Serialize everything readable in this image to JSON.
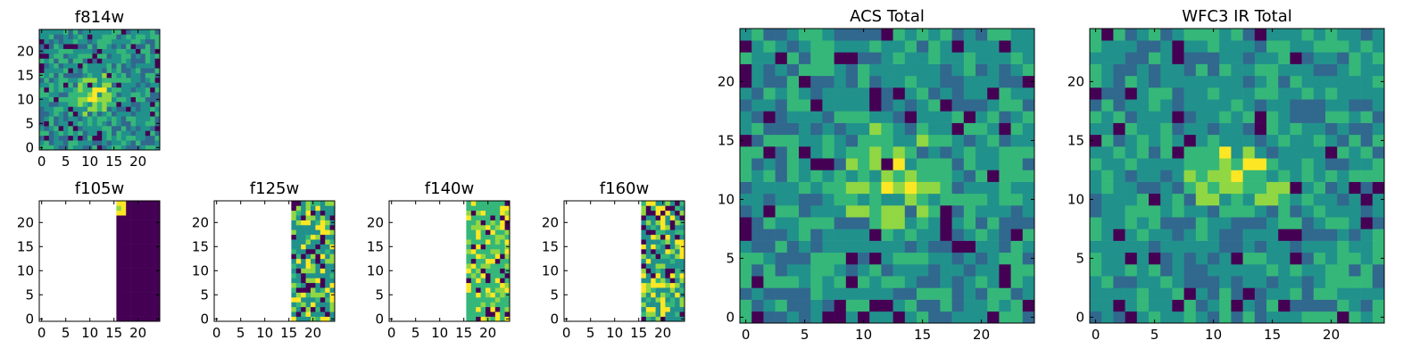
{
  "chart_data": [
    {
      "type": "heatmap",
      "title": "f814w",
      "grid_size": 25,
      "pixels": "full",
      "xlim": [
        0,
        24
      ],
      "ylim": [
        0,
        24
      ],
      "xticks": [
        "0",
        "5",
        "10",
        "15",
        "20"
      ],
      "yticks": [
        "0",
        "5",
        "10",
        "15",
        "20"
      ],
      "xlabel": "",
      "ylabel": "",
      "colormap": "viridis",
      "source_center": [
        11,
        11
      ],
      "brightness": "yellow blob near center"
    },
    {
      "type": "heatmap",
      "title": "f105w",
      "grid_size": 25,
      "data_region_x_start": 16,
      "xlim": [
        0,
        24
      ],
      "ylim": [
        0,
        24
      ],
      "xticks": [
        "0",
        "5",
        "10",
        "15",
        "20"
      ],
      "yticks": [
        "0",
        "5",
        "10",
        "15",
        "20"
      ],
      "xlabel": "",
      "ylabel": "",
      "colormap": "viridis",
      "notes": "mostly dark, bright pixels at top-left of data region"
    },
    {
      "type": "heatmap",
      "title": "f125w",
      "grid_size": 25,
      "data_region_x_start": 16,
      "xlim": [
        0,
        24
      ],
      "ylim": [
        0,
        24
      ],
      "xticks": [
        "0",
        "5",
        "10",
        "15",
        "20"
      ],
      "yticks": [
        "0",
        "5",
        "10",
        "15",
        "20"
      ],
      "xlabel": "",
      "ylabel": "",
      "colormap": "viridis"
    },
    {
      "type": "heatmap",
      "title": "f140w",
      "grid_size": 25,
      "data_region_x_start": 16,
      "xlim": [
        0,
        24
      ],
      "ylim": [
        0,
        24
      ],
      "xticks": [
        "0",
        "5",
        "10",
        "15",
        "20"
      ],
      "yticks": [
        "0",
        "5",
        "10",
        "15",
        "20"
      ],
      "xlabel": "",
      "ylabel": "",
      "colormap": "viridis"
    },
    {
      "type": "heatmap",
      "title": "f160w",
      "grid_size": 25,
      "data_region_x_start": 16,
      "xlim": [
        0,
        24
      ],
      "ylim": [
        0,
        24
      ],
      "xticks": [
        "0",
        "5",
        "10",
        "15",
        "20"
      ],
      "yticks": [
        "0",
        "5",
        "10",
        "15",
        "20"
      ],
      "xlabel": "",
      "ylabel": "",
      "colormap": "viridis"
    },
    {
      "type": "heatmap",
      "title": "ACS Total",
      "grid_size": 25,
      "pixels": "full",
      "xlim": [
        0,
        24
      ],
      "ylim": [
        0,
        24
      ],
      "xticks": [
        "0",
        "5",
        "10",
        "15",
        "20"
      ],
      "yticks": [
        "0",
        "5",
        "10",
        "15",
        "20"
      ],
      "xlabel": "",
      "ylabel": "",
      "colormap": "viridis",
      "source_center": [
        12,
        12
      ]
    },
    {
      "type": "heatmap",
      "title": "WFC3 IR Total",
      "grid_size": 25,
      "pixels": "full",
      "xlim": [
        0,
        24
      ],
      "ylim": [
        0,
        24
      ],
      "xticks": [
        "0",
        "5",
        "10",
        "15",
        "20"
      ],
      "yticks": [
        "0",
        "5",
        "10",
        "15",
        "20"
      ],
      "xlabel": "",
      "ylabel": "",
      "colormap": "viridis",
      "source_center": [
        12,
        12
      ]
    }
  ],
  "colors": {
    "dark": "#440154",
    "blue": "#31688e",
    "teal": "#21918c",
    "green": "#35b779",
    "lime": "#90d743",
    "yellow": "#fde725",
    "background": "#ffffff"
  }
}
